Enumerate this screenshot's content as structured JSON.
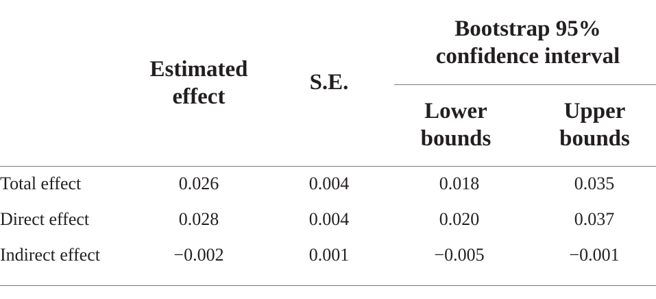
{
  "table": {
    "headers": {
      "estimated_effect": "Estimated effect",
      "se": "S.E.",
      "ci_group": "Bootstrap 95% confidence interval",
      "lower": "Lower bounds",
      "upper": "Upper bounds"
    },
    "rows": [
      {
        "label": "Total effect",
        "estimate": "0.026",
        "se": "0.004",
        "lower": "0.018",
        "upper": "0.035"
      },
      {
        "label": "Direct effect",
        "estimate": "0.028",
        "se": "0.004",
        "lower": "0.020",
        "upper": "0.037"
      },
      {
        "label": "Indirect effect",
        "estimate": "−0.002",
        "se": "0.001",
        "lower": "−0.005",
        "upper": "−0.001"
      }
    ]
  }
}
